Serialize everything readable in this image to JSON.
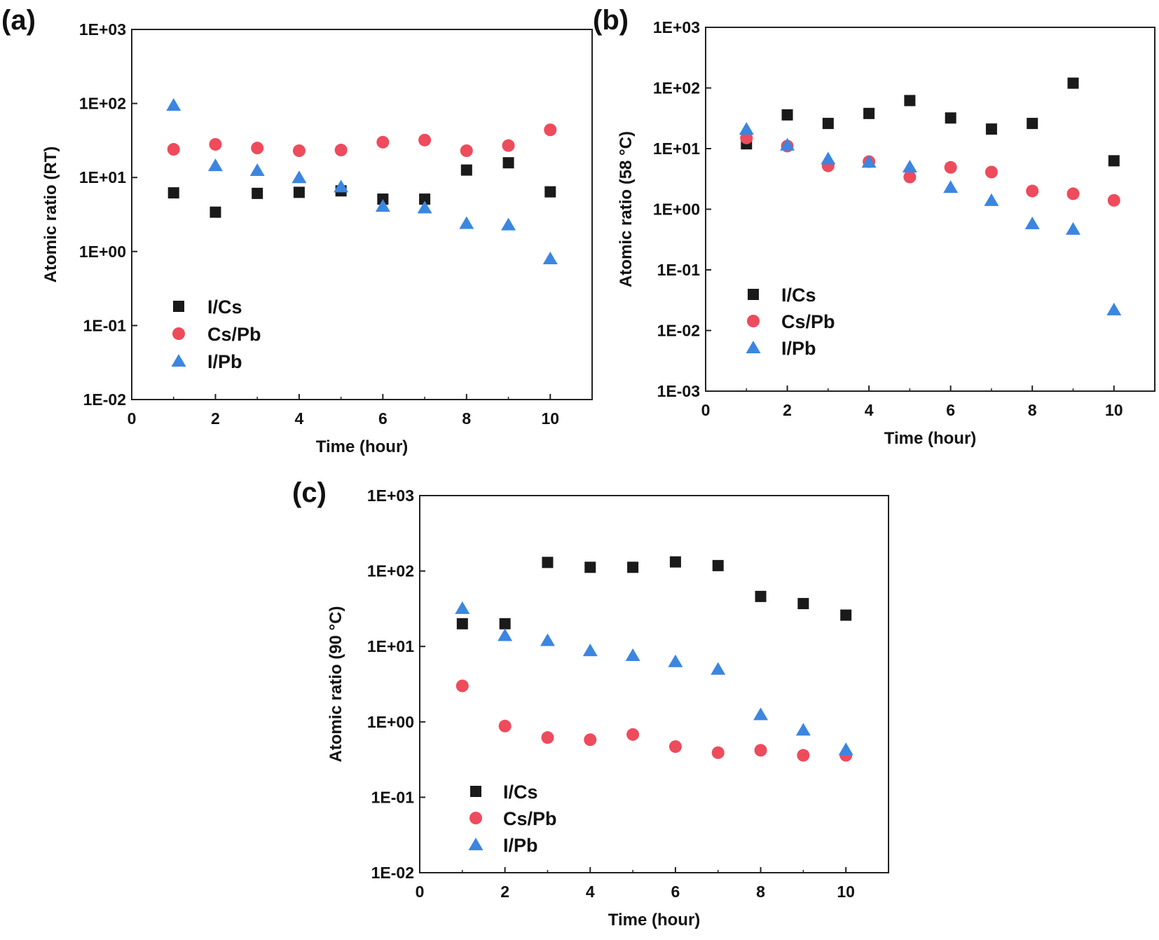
{
  "chart_data": [
    {
      "type": "scatter",
      "panel_label": "(a)",
      "xlabel": "Time (hour)",
      "ylabel": "Atomic ratio (RT)",
      "y_scale": "log",
      "xlim": [
        0,
        11
      ],
      "x_ticks": [
        0,
        2,
        4,
        6,
        8,
        10
      ],
      "x_tick_labels": [
        "0",
        "2",
        "4",
        "6",
        "8",
        "10"
      ],
      "ylim": [
        0.01,
        1000
      ],
      "y_ticks": [
        0.01,
        0.1,
        1,
        10,
        100,
        1000
      ],
      "y_tick_labels": [
        "1E-02",
        "1E-01",
        "1E+00",
        "1E+01",
        "1E+02",
        "1E+03"
      ],
      "grid": false,
      "legend_position": "bottom-left",
      "x": [
        1,
        2,
        3,
        4,
        5,
        6,
        7,
        8,
        9,
        10
      ],
      "series": [
        {
          "name": "I/Cs",
          "marker": "square",
          "color": "#1a1a1a",
          "values": [
            6.2,
            3.4,
            6.1,
            6.3,
            6.6,
            5.1,
            5.1,
            12.6,
            15.8,
            6.4
          ]
        },
        {
          "name": "Cs/Pb",
          "marker": "circle",
          "color": "#ee4b5c",
          "values": [
            24,
            28,
            25,
            23,
            23.5,
            30,
            32,
            23,
            27,
            44
          ]
        },
        {
          "name": "I/Pb",
          "marker": "triangle",
          "color": "#3b86e0",
          "values": [
            95,
            14.5,
            12.5,
            10,
            7.5,
            4.1,
            3.9,
            2.4,
            2.3,
            0.8
          ]
        }
      ]
    },
    {
      "type": "scatter",
      "panel_label": "(b)",
      "xlabel": "Time (hour)",
      "ylabel": "Atomic ratio (58 °C)",
      "y_scale": "log",
      "xlim": [
        0,
        11
      ],
      "x_ticks": [
        0,
        2,
        4,
        6,
        8,
        10
      ],
      "x_tick_labels": [
        "0",
        "2",
        "4",
        "6",
        "8",
        "10"
      ],
      "ylim": [
        0.001,
        1000
      ],
      "y_ticks": [
        0.001,
        0.01,
        0.1,
        1,
        10,
        100,
        1000
      ],
      "y_tick_labels": [
        "1E-03",
        "1E-02",
        "1E-01",
        "1E+00",
        "1E+01",
        "1E+02",
        "1E+03"
      ],
      "grid": false,
      "legend_position": "bottom-left",
      "x": [
        1,
        2,
        3,
        4,
        5,
        6,
        7,
        8,
        9,
        10
      ],
      "series": [
        {
          "name": "I/Cs",
          "marker": "square",
          "color": "#1a1a1a",
          "values": [
            12,
            36,
            26,
            38,
            62,
            32,
            21,
            26,
            120,
            6.3
          ]
        },
        {
          "name": "Cs/Pb",
          "marker": "circle",
          "color": "#ee4b5c",
          "values": [
            15,
            11,
            5.2,
            6.1,
            3.4,
            4.9,
            4.1,
            2.0,
            1.8,
            1.4
          ]
        },
        {
          "name": "I/Pb",
          "marker": "triangle",
          "color": "#3b86e0",
          "values": [
            21,
            11.5,
            6.8,
            6.0,
            5.0,
            2.3,
            1.4,
            0.58,
            0.47,
            0.022
          ]
        }
      ]
    },
    {
      "type": "scatter",
      "panel_label": "(c)",
      "xlabel": "Time (hour)",
      "ylabel": "Atomic ratio (90 °C)",
      "y_scale": "log",
      "xlim": [
        0,
        11
      ],
      "x_ticks": [
        0,
        2,
        4,
        6,
        8,
        10
      ],
      "x_tick_labels": [
        "0",
        "2",
        "4",
        "6",
        "8",
        "10"
      ],
      "ylim": [
        0.01,
        1000
      ],
      "y_ticks": [
        0.01,
        0.1,
        1,
        10,
        100,
        1000
      ],
      "y_tick_labels": [
        "1E-02",
        "1E-01",
        "1E+00",
        "1E+01",
        "1E+02",
        "1E+03"
      ],
      "grid": false,
      "legend_position": "bottom-left",
      "x": [
        1,
        2,
        3,
        4,
        5,
        6,
        7,
        8,
        9,
        10
      ],
      "series": [
        {
          "name": "I/Cs",
          "marker": "square",
          "color": "#1a1a1a",
          "values": [
            20,
            20,
            130,
            112,
            112,
            132,
            118,
            46,
            37,
            26
          ]
        },
        {
          "name": "Cs/Pb",
          "marker": "circle",
          "color": "#ee4b5c",
          "values": [
            3.0,
            0.88,
            0.62,
            0.58,
            0.68,
            0.47,
            0.39,
            0.42,
            0.36,
            0.36
          ]
        },
        {
          "name": "I/Pb",
          "marker": "triangle",
          "color": "#3b86e0",
          "values": [
            32,
            14,
            12,
            8.8,
            7.6,
            6.3,
            5.0,
            1.25,
            0.78,
            0.43
          ]
        }
      ]
    }
  ]
}
